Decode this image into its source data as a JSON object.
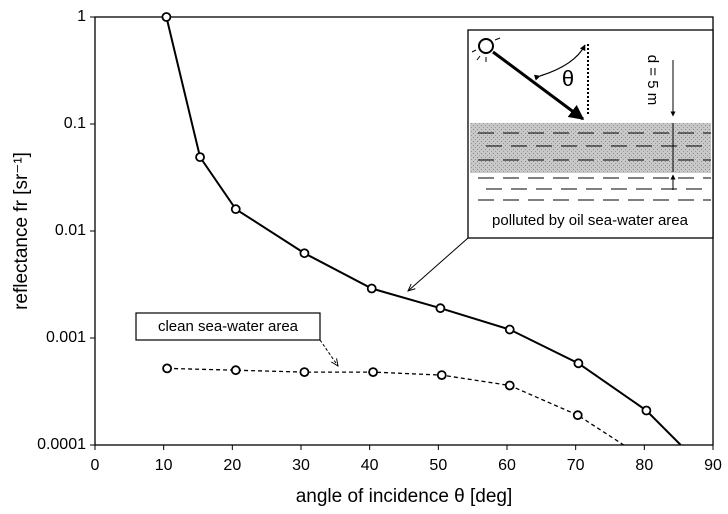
{
  "chart_data": {
    "type": "line",
    "x_label": "angle of incidence  θ     [deg]",
    "y_label": "reflectance fr [sr⁻¹]",
    "xlim": [
      0,
      90
    ],
    "ylim": [
      0.0001,
      1
    ],
    "log_y": true,
    "xticks": [
      0,
      10,
      20,
      30,
      40,
      50,
      60,
      70,
      80,
      90
    ],
    "yticks": [
      0.0001,
      0.001,
      0.01,
      0.1,
      1
    ],
    "series": [
      {
        "name": "polluted by oil sea-water area",
        "color": "#000000",
        "dashed": false,
        "x": [
          10.4,
          15.3,
          20.5,
          30.5,
          40.3,
          50.3,
          60.4,
          70.4,
          80.3,
          85.3
        ],
        "values": [
          1,
          0.049,
          0.016,
          0.0062,
          0.0029,
          0.0019,
          0.0012,
          0.00058,
          0.00021,
          0.0001
        ]
      },
      {
        "name": "clean sea-water area",
        "color": "#000000",
        "dashed": true,
        "x": [
          10.5,
          20.5,
          30.5,
          40.5,
          50.5,
          60.4,
          70.3,
          77
        ],
        "values": [
          0.00052,
          0.0005,
          0.00048,
          0.00048,
          0.00045,
          0.00036,
          0.00019,
          0.0001
        ]
      }
    ],
    "inset": {
      "angle_label": "θ",
      "depth_label": "d = 5 m"
    }
  }
}
